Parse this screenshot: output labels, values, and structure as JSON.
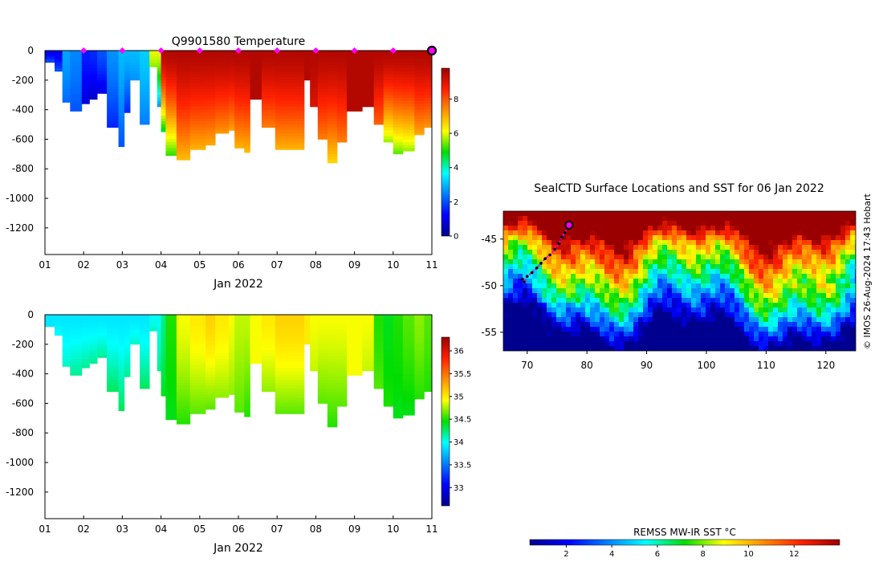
{
  "chart_data": [
    {
      "type": "heatmap",
      "id": "temperature",
      "title": "Q9901580  Temperature",
      "xlabel": "Jan 2022",
      "x_ticks": [
        "01",
        "02",
        "03",
        "04",
        "05",
        "06",
        "07",
        "08",
        "09",
        "10",
        "11"
      ],
      "xlim": [
        1,
        11
      ],
      "y_ticks": [
        0,
        -200,
        -400,
        -600,
        -800,
        -1000,
        -1200
      ],
      "ylim": [
        -1380,
        0
      ],
      "colorbar": {
        "ticks": [
          0,
          2,
          4,
          6,
          8
        ],
        "range": [
          0,
          9.8
        ]
      },
      "surface_markers_day": [
        2,
        3,
        4,
        5,
        6,
        7,
        8,
        9,
        10
      ],
      "current_marker_day": 11,
      "profiles": [
        {
          "day": 1.0,
          "depth": 80,
          "top": 1.0,
          "deep": 2.3
        },
        {
          "day": 1.25,
          "depth": 140,
          "top": 1.0,
          "deep": 2.2
        },
        {
          "day": 1.45,
          "depth": 350,
          "top": 2.8,
          "deep": 2.2
        },
        {
          "day": 1.65,
          "depth": 410,
          "top": 2.5,
          "deep": 2.0
        },
        {
          "day": 1.95,
          "depth": 360,
          "top": 1.5,
          "deep": 0.8
        },
        {
          "day": 2.15,
          "depth": 330,
          "top": 1.6,
          "deep": 0.6
        },
        {
          "day": 2.35,
          "depth": 290,
          "top": 2.0,
          "deep": 0.8
        },
        {
          "day": 2.6,
          "depth": 520,
          "top": 2.6,
          "deep": 1.5
        },
        {
          "day": 2.9,
          "depth": 650,
          "top": 3.0,
          "deep": 2.0
        },
        {
          "day": 3.05,
          "depth": 420,
          "top": 3.0,
          "deep": 1.5
        },
        {
          "day": 3.2,
          "depth": 200,
          "top": 3.0,
          "deep": 2.6
        },
        {
          "day": 3.45,
          "depth": 500,
          "top": 3.2,
          "deep": 2.4
        },
        {
          "day": 3.7,
          "depth": 110,
          "top": 6.0,
          "deep": 5.5
        },
        {
          "day": 3.9,
          "depth": 380,
          "top": 6.0,
          "deep": 2.5
        },
        {
          "day": 4.0,
          "depth": 550,
          "top": 9.5,
          "deep": 4.5
        },
        {
          "day": 4.12,
          "depth": 710,
          "top": 9.5,
          "deep": 5.0
        },
        {
          "day": 4.4,
          "depth": 740,
          "top": 9.5,
          "deep": 6.8
        },
        {
          "day": 4.75,
          "depth": 670,
          "top": 9.5,
          "deep": 6.9
        },
        {
          "day": 5.15,
          "depth": 640,
          "top": 9.5,
          "deep": 7.0
        },
        {
          "day": 5.4,
          "depth": 560,
          "top": 9.5,
          "deep": 7.2
        },
        {
          "day": 5.75,
          "depth": 540,
          "top": 9.5,
          "deep": 7.1
        },
        {
          "day": 5.9,
          "depth": 660,
          "top": 9.5,
          "deep": 6.9
        },
        {
          "day": 6.15,
          "depth": 690,
          "top": 9.5,
          "deep": 6.8
        },
        {
          "day": 6.3,
          "depth": 330,
          "top": 9.5,
          "deep": 9.5
        },
        {
          "day": 6.6,
          "depth": 520,
          "top": 9.5,
          "deep": 7.5
        },
        {
          "day": 6.95,
          "depth": 670,
          "top": 9.5,
          "deep": 6.9
        },
        {
          "day": 7.35,
          "depth": 670,
          "top": 9.5,
          "deep": 6.9
        },
        {
          "day": 7.7,
          "depth": 200,
          "top": 9.5,
          "deep": 9.5
        },
        {
          "day": 7.85,
          "depth": 380,
          "top": 9.5,
          "deep": 9.0
        },
        {
          "day": 8.05,
          "depth": 600,
          "top": 9.5,
          "deep": 7.5
        },
        {
          "day": 8.3,
          "depth": 760,
          "top": 9.5,
          "deep": 6.5
        },
        {
          "day": 8.55,
          "depth": 620,
          "top": 9.5,
          "deep": 7.5
        },
        {
          "day": 8.8,
          "depth": 410,
          "top": 9.5,
          "deep": 9.5
        },
        {
          "day": 9.2,
          "depth": 380,
          "top": 9.5,
          "deep": 9.5
        },
        {
          "day": 9.5,
          "depth": 500,
          "top": 9.5,
          "deep": 7.8
        },
        {
          "day": 9.75,
          "depth": 620,
          "top": 9.5,
          "deep": 5.5
        },
        {
          "day": 10.0,
          "depth": 700,
          "top": 9.5,
          "deep": 5.2
        },
        {
          "day": 10.25,
          "depth": 680,
          "top": 9.5,
          "deep": 5.5
        },
        {
          "day": 10.55,
          "depth": 570,
          "top": 9.5,
          "deep": 7.0
        },
        {
          "day": 10.8,
          "depth": 520,
          "top": 9.5,
          "deep": 7.2
        }
      ]
    },
    {
      "type": "heatmap",
      "id": "salinity",
      "xlabel": "Jan 2022",
      "x_ticks": [
        "01",
        "02",
        "03",
        "04",
        "05",
        "06",
        "07",
        "08",
        "09",
        "10",
        "11"
      ],
      "xlim": [
        1,
        11
      ],
      "y_ticks": [
        0,
        -200,
        -400,
        -600,
        -800,
        -1000,
        -1200
      ],
      "ylim": [
        -1380,
        0
      ],
      "colorbar": {
        "ticks": [
          "33",
          "33.5",
          "34",
          "34.5",
          "35",
          "35.5",
          "36"
        ],
        "range": [
          32.6,
          36.3
        ]
      },
      "profiles": [
        {
          "day": 1.0,
          "depth": 80,
          "top": 33.9,
          "deep": 33.9
        },
        {
          "day": 1.25,
          "depth": 140,
          "top": 33.9,
          "deep": 34.0
        },
        {
          "day": 1.45,
          "depth": 350,
          "top": 33.9,
          "deep": 34.1
        },
        {
          "day": 1.65,
          "depth": 410,
          "top": 33.9,
          "deep": 34.2
        },
        {
          "day": 1.95,
          "depth": 360,
          "top": 33.9,
          "deep": 34.2
        },
        {
          "day": 2.15,
          "depth": 330,
          "top": 33.9,
          "deep": 34.2
        },
        {
          "day": 2.35,
          "depth": 290,
          "top": 33.9,
          "deep": 34.2
        },
        {
          "day": 2.6,
          "depth": 520,
          "top": 33.9,
          "deep": 34.3
        },
        {
          "day": 2.9,
          "depth": 650,
          "top": 33.9,
          "deep": 34.3
        },
        {
          "day": 3.05,
          "depth": 420,
          "top": 33.9,
          "deep": 34.2
        },
        {
          "day": 3.2,
          "depth": 200,
          "top": 33.9,
          "deep": 34.1
        },
        {
          "day": 3.45,
          "depth": 500,
          "top": 33.9,
          "deep": 34.3
        },
        {
          "day": 3.7,
          "depth": 110,
          "top": 34.0,
          "deep": 34.1
        },
        {
          "day": 3.9,
          "depth": 380,
          "top": 34.0,
          "deep": 34.2
        },
        {
          "day": 4.0,
          "depth": 550,
          "top": 34.2,
          "deep": 34.4
        },
        {
          "day": 4.12,
          "depth": 710,
          "top": 34.5,
          "deep": 34.4
        },
        {
          "day": 4.4,
          "depth": 740,
          "top": 34.9,
          "deep": 34.5
        },
        {
          "day": 4.75,
          "depth": 670,
          "top": 35.0,
          "deep": 34.6
        },
        {
          "day": 5.15,
          "depth": 640,
          "top": 35.1,
          "deep": 34.6
        },
        {
          "day": 5.4,
          "depth": 560,
          "top": 35.0,
          "deep": 34.7
        },
        {
          "day": 5.75,
          "depth": 540,
          "top": 34.9,
          "deep": 34.7
        },
        {
          "day": 5.9,
          "depth": 660,
          "top": 34.8,
          "deep": 34.6
        },
        {
          "day": 6.15,
          "depth": 690,
          "top": 34.8,
          "deep": 34.5
        },
        {
          "day": 6.3,
          "depth": 330,
          "top": 34.9,
          "deep": 34.9
        },
        {
          "day": 6.6,
          "depth": 520,
          "top": 35.0,
          "deep": 34.7
        },
        {
          "day": 6.95,
          "depth": 670,
          "top": 35.1,
          "deep": 34.6
        },
        {
          "day": 7.35,
          "depth": 670,
          "top": 35.1,
          "deep": 34.6
        },
        {
          "day": 7.7,
          "depth": 200,
          "top": 35.0,
          "deep": 35.0
        },
        {
          "day": 7.85,
          "depth": 380,
          "top": 34.9,
          "deep": 34.8
        },
        {
          "day": 8.05,
          "depth": 600,
          "top": 34.9,
          "deep": 34.6
        },
        {
          "day": 8.3,
          "depth": 760,
          "top": 34.9,
          "deep": 34.5
        },
        {
          "day": 8.55,
          "depth": 620,
          "top": 34.9,
          "deep": 34.6
        },
        {
          "day": 8.8,
          "depth": 410,
          "top": 34.9,
          "deep": 34.9
        },
        {
          "day": 9.2,
          "depth": 380,
          "top": 34.9,
          "deep": 34.8
        },
        {
          "day": 9.5,
          "depth": 500,
          "top": 34.5,
          "deep": 34.6
        },
        {
          "day": 9.75,
          "depth": 620,
          "top": 34.4,
          "deep": 34.5
        },
        {
          "day": 10.0,
          "depth": 700,
          "top": 34.5,
          "deep": 34.4
        },
        {
          "day": 10.25,
          "depth": 680,
          "top": 34.6,
          "deep": 34.4
        },
        {
          "day": 10.55,
          "depth": 570,
          "top": 34.7,
          "deep": 34.5
        },
        {
          "day": 10.8,
          "depth": 520,
          "top": 34.6,
          "deep": 34.5
        }
      ]
    },
    {
      "type": "heatmap",
      "id": "sst_map",
      "title": "SealCTD Surface Locations and SST for 06 Jan 2022",
      "x_ticks": [
        70,
        80,
        90,
        100,
        110,
        120
      ],
      "xlim": [
        66,
        125
      ],
      "y_ticks": [
        -45,
        -50,
        -55
      ],
      "ylim": [
        -57,
        -42
      ],
      "track": {
        "lon": [
          69.2,
          69.5,
          70.0,
          70.8,
          71.6,
          72.3,
          73.0,
          73.8,
          74.6,
          75.3,
          75.8,
          76.3,
          76.7,
          77.0
        ],
        "lat": [
          -49.3,
          -49.6,
          -49.0,
          -48.6,
          -48.1,
          -47.6,
          -47.1,
          -46.7,
          -46.1,
          -45.5,
          -44.8,
          -44.3,
          -43.8,
          -43.5
        ]
      },
      "current_position": {
        "lon": 77.0,
        "lat": -43.5
      },
      "colorbar": {
        "label": "REMSS MW-IR SST °C",
        "ticks": [
          2,
          4,
          6,
          8,
          10,
          12
        ],
        "range": [
          0.4,
          14
        ]
      },
      "credit": "© IMOS 26-Aug-2024 17:43 Hobart"
    }
  ]
}
